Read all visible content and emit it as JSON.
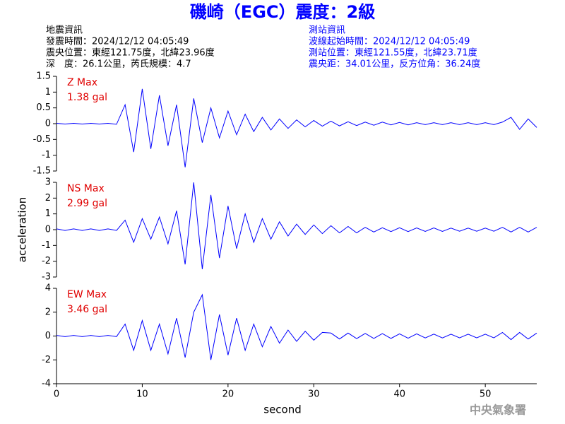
{
  "header": {
    "title": "磯崎（EGC）震度：2級",
    "left": [
      "地震資訊",
      "發震時間：2024/12/12 04:05:49",
      "震央位置：東經121.75度，北緯23.96度",
      "深　度：26.1公里，芮氏規模：4.7"
    ],
    "right": [
      "測站資訊",
      "波線起始時間：2024/12/12 04:05:49",
      "測站位置：東經121.55度，北緯23.71度",
      "震央距：34.01公里，反方位角：36.24度"
    ]
  },
  "footer": "中央氣象署",
  "chart_data": [
    {
      "type": "line",
      "annotations": [
        "Z Max",
        "1.38 gal"
      ],
      "color": "#0000ff",
      "x": [
        0,
        1,
        2,
        3,
        4,
        5,
        6,
        7,
        8,
        9,
        10,
        11,
        12,
        13,
        14,
        15,
        16,
        17,
        18,
        19,
        20,
        21,
        22,
        23,
        24,
        25,
        26,
        27,
        28,
        29,
        30,
        31,
        32,
        33,
        34,
        35,
        36,
        37,
        38,
        39,
        40,
        41,
        42,
        43,
        44,
        45,
        46,
        47,
        48,
        49,
        50,
        51,
        52,
        53,
        54,
        55,
        56
      ],
      "values": [
        0.01,
        -0.01,
        0.01,
        -0.01,
        0.01,
        -0.01,
        0.01,
        -0.02,
        0.6,
        -0.9,
        1.1,
        -0.8,
        0.9,
        -0.7,
        0.6,
        -1.38,
        0.8,
        -0.6,
        0.5,
        -0.45,
        0.4,
        -0.35,
        0.3,
        -0.25,
        0.2,
        -0.2,
        0.15,
        -0.15,
        0.12,
        -0.1,
        0.1,
        -0.08,
        0.08,
        -0.07,
        0.06,
        -0.06,
        0.05,
        -0.05,
        0.05,
        -0.04,
        0.04,
        -0.04,
        0.03,
        -0.03,
        0.03,
        -0.03,
        0.03,
        -0.03,
        0.03,
        -0.03,
        0.03,
        -0.03,
        0.05,
        0.2,
        -0.18,
        0.15,
        -0.12
      ],
      "xlim": [
        0,
        56
      ],
      "ylim": [
        -1.5,
        1.5
      ],
      "yticks": [
        1.5,
        1,
        0.5,
        0,
        -0.5,
        -1,
        -1.5
      ]
    },
    {
      "type": "line",
      "annotations": [
        "NS Max",
        "2.99 gal"
      ],
      "color": "#0000ff",
      "ylabel": "acceleration",
      "x": [
        0,
        1,
        2,
        3,
        4,
        5,
        6,
        7,
        8,
        9,
        10,
        11,
        12,
        13,
        14,
        15,
        16,
        17,
        18,
        19,
        20,
        21,
        22,
        23,
        24,
        25,
        26,
        27,
        28,
        29,
        30,
        31,
        32,
        33,
        34,
        35,
        36,
        37,
        38,
        39,
        40,
        41,
        42,
        43,
        44,
        45,
        46,
        47,
        48,
        49,
        50,
        51,
        52,
        53,
        54,
        55,
        56
      ],
      "values": [
        0.05,
        -0.05,
        0.05,
        -0.05,
        0.05,
        -0.05,
        0.05,
        -0.05,
        0.6,
        -0.8,
        0.7,
        -0.6,
        0.8,
        -0.9,
        1.2,
        -2.2,
        2.99,
        -2.5,
        2.2,
        -1.8,
        1.5,
        -1.2,
        1.0,
        -0.8,
        0.7,
        -0.6,
        0.5,
        -0.4,
        0.35,
        -0.3,
        0.3,
        -0.25,
        0.25,
        -0.2,
        0.2,
        -0.2,
        0.15,
        -0.15,
        0.12,
        -0.12,
        0.12,
        -0.12,
        0.11,
        -0.11,
        0.11,
        -0.11,
        0.1,
        -0.1,
        0.1,
        -0.1,
        0.1,
        -0.1,
        0.15,
        -0.15,
        0.15,
        -0.15,
        0.15
      ],
      "xlim": [
        0,
        56
      ],
      "ylim": [
        -3,
        3
      ],
      "yticks": [
        3,
        2,
        1,
        0,
        -1,
        -2,
        -3
      ]
    },
    {
      "type": "line",
      "annotations": [
        "EW Max",
        "3.46 gal"
      ],
      "color": "#0000ff",
      "xlabel": "second",
      "x": [
        0,
        1,
        2,
        3,
        4,
        5,
        6,
        7,
        8,
        9,
        10,
        11,
        12,
        13,
        14,
        15,
        16,
        17,
        18,
        19,
        20,
        21,
        22,
        23,
        24,
        25,
        26,
        27,
        28,
        29,
        30,
        31,
        32,
        33,
        34,
        35,
        36,
        37,
        38,
        39,
        40,
        41,
        42,
        43,
        44,
        45,
        46,
        47,
        48,
        49,
        50,
        51,
        52,
        53,
        54,
        55,
        56
      ],
      "values": [
        0.05,
        -0.05,
        0.05,
        -0.05,
        0.05,
        -0.05,
        0.05,
        -0.05,
        1.0,
        -1.2,
        1.3,
        -1.2,
        1.0,
        -1.5,
        1.5,
        -1.8,
        2.0,
        3.46,
        -2.0,
        1.8,
        -1.6,
        1.5,
        -1.2,
        1.0,
        -0.9,
        0.8,
        -0.6,
        0.5,
        -0.45,
        0.4,
        -0.35,
        0.3,
        0.25,
        -0.25,
        0.25,
        -0.22,
        0.22,
        -0.2,
        0.2,
        -0.2,
        0.18,
        -0.18,
        0.18,
        -0.16,
        0.16,
        -0.16,
        0.15,
        -0.15,
        0.15,
        -0.15,
        0.15,
        -0.15,
        0.3,
        -0.3,
        0.3,
        -0.25,
        0.25
      ],
      "xlim": [
        0,
        56
      ],
      "ylim": [
        -4,
        4
      ],
      "yticks": [
        4,
        2,
        0,
        -2,
        -4
      ],
      "xticks": [
        0,
        10,
        20,
        30,
        40,
        50
      ]
    }
  ]
}
